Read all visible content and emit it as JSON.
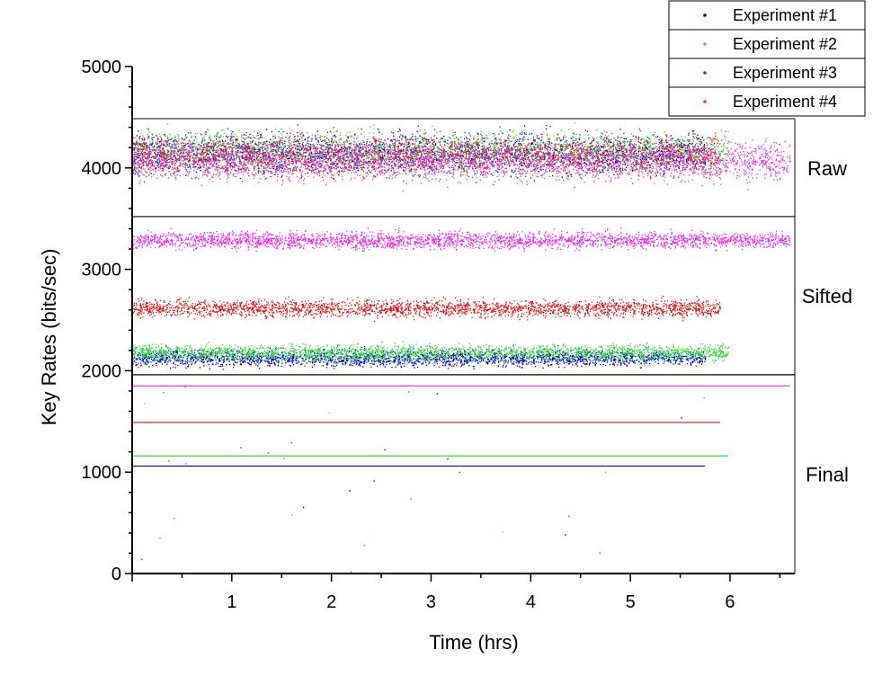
{
  "chart_data": {
    "type": "scatter",
    "xlabel": "Time (hrs)",
    "ylabel": "Key Rates (bits/sec)",
    "xlim": [
      0,
      6.65
    ],
    "ylim": [
      0,
      5000
    ],
    "x_ticks": [
      "1",
      "2",
      "3",
      "4",
      "5",
      "6"
    ],
    "y_ticks": [
      "0",
      "1000",
      "2000",
      "3000",
      "4000",
      "5000"
    ],
    "grid": false,
    "legend_position": "top-right, above plot",
    "regions": [
      {
        "label": "Raw",
        "ymin": 3520,
        "ymax": 4480
      },
      {
        "label": "Sifted",
        "ymin": 1960,
        "ymax": 3520
      },
      {
        "label": "Final",
        "ymin": 0,
        "ymax": 1960
      }
    ],
    "series": [
      {
        "name": "Experiment #1",
        "color": "#0000cc",
        "duration_hrs": 5.75,
        "raw_rate": 4150,
        "sifted_rate": 2130,
        "final_rate": 1060
      },
      {
        "name": "Experiment #2",
        "color": "#33dd33",
        "duration_hrs": 5.98,
        "raw_rate": 4160,
        "sifted_rate": 2180,
        "final_rate": 1160
      },
      {
        "name": "Experiment #3",
        "color": "#dd1111",
        "duration_hrs": 5.9,
        "raw_rate": 4130,
        "sifted_rate": 2620,
        "final_rate": 1490
      },
      {
        "name": "Experiment #4",
        "color": "#ee22ee",
        "duration_hrs": 6.6,
        "raw_rate": 4080,
        "sifted_rate": 3290,
        "final_rate": 1850
      }
    ]
  }
}
